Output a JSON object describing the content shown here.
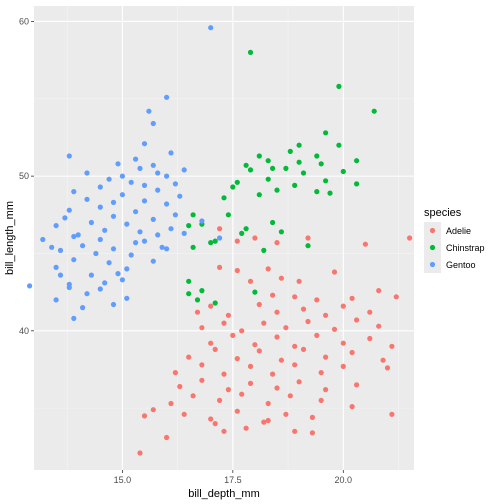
{
  "chart_data": {
    "type": "scatter",
    "xlabel": "bill_depth_mm",
    "ylabel": "bill_length_mm",
    "xlim": [
      13.0,
      21.6
    ],
    "ylim": [
      31.0,
      61.0
    ],
    "x_ticks": [
      15.0,
      17.5,
      20.0
    ],
    "x_tick_labels": [
      "15.0",
      "17.5",
      "20.0"
    ],
    "y_ticks": [
      40,
      50,
      60
    ],
    "y_tick_labels": [
      "40",
      "50",
      "60"
    ],
    "grid": true,
    "legend": {
      "title": "species",
      "placement": "right"
    },
    "background": "#ebebeb",
    "series": [
      {
        "name": "Adelie",
        "color": "#f8766d",
        "points": [
          [
            17.2,
            46.6
          ],
          [
            17.6,
            45.8
          ],
          [
            18.0,
            46.0
          ],
          [
            18.5,
            45.7
          ],
          [
            19.2,
            46.0
          ],
          [
            20.5,
            45.6
          ],
          [
            21.5,
            46.0
          ],
          [
            17.2,
            44.1
          ],
          [
            17.6,
            43.9
          ],
          [
            18.3,
            44.0
          ],
          [
            17.9,
            43.2
          ],
          [
            18.6,
            43.4
          ],
          [
            19.0,
            43.2
          ],
          [
            19.8,
            43.8
          ],
          [
            18.4,
            42.3
          ],
          [
            18.9,
            42.2
          ],
          [
            19.4,
            42.0
          ],
          [
            20.2,
            42.1
          ],
          [
            20.8,
            42.6
          ],
          [
            21.2,
            42.2
          ],
          [
            16.7,
            41.2
          ],
          [
            17.0,
            41.6
          ],
          [
            17.4,
            41.0
          ],
          [
            18.1,
            41.7
          ],
          [
            18.5,
            41.2
          ],
          [
            19.1,
            41.4
          ],
          [
            19.6,
            41.0
          ],
          [
            20.0,
            41.6
          ],
          [
            20.6,
            41.2
          ],
          [
            16.8,
            40.2
          ],
          [
            17.3,
            40.5
          ],
          [
            17.7,
            40.0
          ],
          [
            18.2,
            40.5
          ],
          [
            18.7,
            40.2
          ],
          [
            19.2,
            40.6
          ],
          [
            19.8,
            40.1
          ],
          [
            20.3,
            40.7
          ],
          [
            20.8,
            40.3
          ],
          [
            17.0,
            39.2
          ],
          [
            17.5,
            39.7
          ],
          [
            18.0,
            39.1
          ],
          [
            18.5,
            39.6
          ],
          [
            18.9,
            39.0
          ],
          [
            19.4,
            39.7
          ],
          [
            20.0,
            39.2
          ],
          [
            20.6,
            39.5
          ],
          [
            21.1,
            39.0
          ],
          [
            16.5,
            38.3
          ],
          [
            17.1,
            38.8
          ],
          [
            17.6,
            38.2
          ],
          [
            18.1,
            38.7
          ],
          [
            18.6,
            38.1
          ],
          [
            19.1,
            38.8
          ],
          [
            19.6,
            38.3
          ],
          [
            20.2,
            38.6
          ],
          [
            20.9,
            38.1
          ],
          [
            16.2,
            37.3
          ],
          [
            16.8,
            37.8
          ],
          [
            17.3,
            37.2
          ],
          [
            17.9,
            37.7
          ],
          [
            18.4,
            37.2
          ],
          [
            18.9,
            37.8
          ],
          [
            19.5,
            37.3
          ],
          [
            20.0,
            37.7
          ],
          [
            21.0,
            37.6
          ],
          [
            16.3,
            36.4
          ],
          [
            16.8,
            36.8
          ],
          [
            17.4,
            36.2
          ],
          [
            17.9,
            36.6
          ],
          [
            18.5,
            36.3
          ],
          [
            19.0,
            36.7
          ],
          [
            19.6,
            36.2
          ],
          [
            20.3,
            36.5
          ],
          [
            16.1,
            35.3
          ],
          [
            16.6,
            35.8
          ],
          [
            17.2,
            35.5
          ],
          [
            17.7,
            35.9
          ],
          [
            18.3,
            35.3
          ],
          [
            18.8,
            35.8
          ],
          [
            19.5,
            35.5
          ],
          [
            20.2,
            35.1
          ],
          [
            15.7,
            34.9
          ],
          [
            16.4,
            34.6
          ],
          [
            17.0,
            34.3
          ],
          [
            17.6,
            34.8
          ],
          [
            18.2,
            34.1
          ],
          [
            18.7,
            34.6
          ],
          [
            19.3,
            34.4
          ],
          [
            15.5,
            34.5
          ],
          [
            17.1,
            34.0
          ],
          [
            17.8,
            33.7
          ],
          [
            18.3,
            34.2
          ],
          [
            19.3,
            33.4
          ],
          [
            21.1,
            34.6
          ],
          [
            16.0,
            33.1
          ],
          [
            17.3,
            33.5
          ],
          [
            18.9,
            33.5
          ],
          [
            15.4,
            32.1
          ]
        ]
      },
      {
        "name": "Chinstrap",
        "color": "#00ba38",
        "points": [
          [
            17.9,
            58.0
          ],
          [
            19.9,
            55.8
          ],
          [
            20.7,
            54.2
          ],
          [
            19.6,
            52.8
          ],
          [
            19.9,
            52.0
          ],
          [
            19.0,
            52.0
          ],
          [
            18.8,
            51.6
          ],
          [
            18.1,
            51.3
          ],
          [
            19.4,
            51.3
          ],
          [
            20.3,
            51.0
          ],
          [
            18.3,
            51.0
          ],
          [
            19.0,
            50.9
          ],
          [
            17.8,
            50.7
          ],
          [
            18.4,
            50.5
          ],
          [
            19.5,
            50.8
          ],
          [
            20.0,
            50.3
          ],
          [
            19.1,
            50.2
          ],
          [
            18.7,
            50.5
          ],
          [
            17.9,
            50.4
          ],
          [
            19.6,
            49.7
          ],
          [
            18.3,
            49.8
          ],
          [
            17.6,
            49.6
          ],
          [
            18.9,
            49.4
          ],
          [
            19.4,
            49.0
          ],
          [
            17.5,
            49.3
          ],
          [
            18.5,
            49.1
          ],
          [
            19.7,
            48.9
          ],
          [
            20.3,
            49.5
          ],
          [
            17.3,
            48.6
          ],
          [
            18.1,
            48.8
          ],
          [
            17.4,
            47.5
          ],
          [
            16.6,
            47.5
          ],
          [
            18.4,
            47.0
          ],
          [
            16.8,
            46.9
          ],
          [
            17.8,
            46.6
          ],
          [
            18.6,
            46.4
          ],
          [
            16.6,
            45.4
          ],
          [
            17.1,
            45.8
          ],
          [
            19.2,
            45.5
          ],
          [
            17.7,
            46.3
          ],
          [
            16.5,
            46.8
          ],
          [
            17.0,
            45.7
          ],
          [
            16.5,
            43.2
          ],
          [
            16.8,
            42.6
          ],
          [
            18.2,
            45.2
          ],
          [
            18.0,
            42.5
          ],
          [
            16.5,
            42.4
          ],
          [
            17.1,
            41.8
          ],
          [
            16.7,
            42.0
          ]
        ]
      },
      {
        "name": "Gentoo",
        "color": "#619cff",
        "points": [
          [
            17.0,
            59.6
          ],
          [
            16.0,
            55.1
          ],
          [
            15.6,
            54.2
          ],
          [
            15.7,
            53.4
          ],
          [
            15.5,
            52.1
          ],
          [
            16.1,
            51.5
          ],
          [
            13.8,
            51.3
          ],
          [
            15.3,
            51.1
          ],
          [
            14.9,
            50.8
          ],
          [
            15.7,
            50.7
          ],
          [
            15.4,
            50.5
          ],
          [
            14.2,
            50.2
          ],
          [
            15.8,
            50.2
          ],
          [
            16.4,
            50.4
          ],
          [
            16.0,
            50.0
          ],
          [
            15.0,
            50.0
          ],
          [
            14.7,
            49.8
          ],
          [
            15.2,
            49.6
          ],
          [
            16.2,
            49.5
          ],
          [
            15.5,
            49.4
          ],
          [
            14.5,
            49.3
          ],
          [
            15.8,
            49.1
          ],
          [
            13.9,
            49.0
          ],
          [
            15.0,
            48.8
          ],
          [
            16.3,
            48.7
          ],
          [
            14.2,
            48.5
          ],
          [
            15.5,
            48.4
          ],
          [
            14.8,
            48.3
          ],
          [
            16.0,
            48.2
          ],
          [
            14.5,
            48.0
          ],
          [
            13.8,
            47.8
          ],
          [
            15.3,
            47.7
          ],
          [
            16.2,
            47.5
          ],
          [
            14.8,
            47.4
          ],
          [
            13.7,
            47.3
          ],
          [
            15.7,
            47.2
          ],
          [
            14.3,
            47.0
          ],
          [
            15.1,
            46.9
          ],
          [
            13.5,
            46.8
          ],
          [
            16.1,
            46.6
          ],
          [
            14.6,
            46.5
          ],
          [
            15.4,
            46.4
          ],
          [
            14.0,
            46.2
          ],
          [
            15.8,
            46.2
          ],
          [
            13.9,
            46.1
          ],
          [
            14.5,
            45.9
          ],
          [
            15.3,
            45.7
          ],
          [
            13.2,
            45.9
          ],
          [
            14.1,
            45.5
          ],
          [
            14.8,
            45.3
          ],
          [
            15.9,
            45.4
          ],
          [
            13.6,
            45.2
          ],
          [
            14.4,
            45.0
          ],
          [
            15.2,
            44.9
          ],
          [
            13.9,
            44.6
          ],
          [
            14.7,
            44.4
          ],
          [
            15.7,
            44.5
          ],
          [
            13.5,
            44.1
          ],
          [
            14.3,
            43.6
          ],
          [
            15.0,
            43.3
          ],
          [
            13.8,
            43.0
          ],
          [
            14.5,
            42.7
          ],
          [
            13.5,
            42.0
          ],
          [
            14.2,
            42.4
          ],
          [
            13.6,
            43.6
          ],
          [
            14.1,
            41.5
          ],
          [
            15.1,
            42.1
          ],
          [
            12.9,
            42.9
          ],
          [
            13.8,
            42.8
          ],
          [
            14.8,
            41.7
          ],
          [
            13.9,
            40.8
          ],
          [
            16.8,
            47.1
          ],
          [
            16.4,
            46.3
          ],
          [
            17.2,
            46.0
          ],
          [
            15.1,
            44.0
          ],
          [
            14.6,
            43.1
          ],
          [
            16.0,
            45.3
          ],
          [
            13.4,
            45.4
          ],
          [
            14.9,
            43.7
          ],
          [
            15.5,
            45.8
          ]
        ]
      }
    ]
  }
}
